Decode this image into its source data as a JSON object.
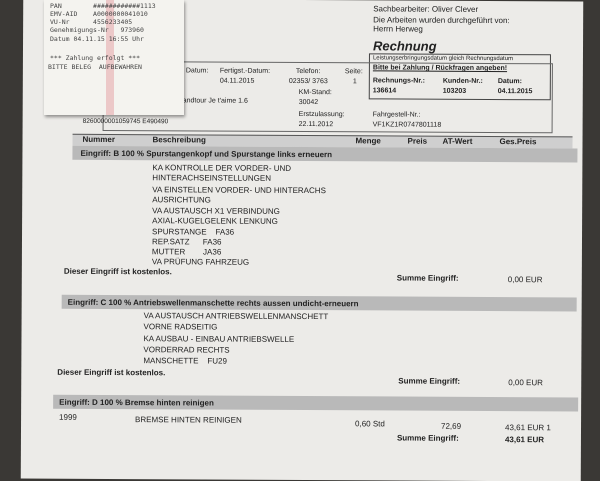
{
  "receipt": {
    "lines": [
      "PAN        ############1113",
      "EMV-AID    A0000000041010",
      "VU-Nr      4556233405",
      "Genehmigungs-Nr   973960",
      "Datum 04.11.15 16:55 Uhr"
    ],
    "note1": "*** Zahlung erfolgt ***",
    "note2": "BITTE BELEG  AUFBEWAHREN"
  },
  "header": {
    "sachbearbeiter": "Sachbearbeiter: Oliver Clever",
    "arbeiten": "Die Arbeiten wurden durchgeführt von:",
    "person": "Herrn Herweg",
    "title": "Rechnung",
    "leistung": "Leistungserbringungsdatum gleich Rechnungsdatum",
    "bitte": "Bitte bei Zahlung / Rückfragen angeben!",
    "rechnr_label": "Rechnungs-Nr.:",
    "rechnr": "136614",
    "kundennr_label": "Kunden-Nr.:",
    "kundennr": "103203",
    "datum_label": "Datum:",
    "datum": "04.11.2015"
  },
  "vehicle": {
    "datum_label": "Datum:",
    "fertig_label": "Fertigst.-Datum:",
    "fertig": "04.11.2015",
    "telefon_label": "Telefon:",
    "telefon": "02353/ 3763",
    "seite_label": "Seite:",
    "seite": "1",
    "model": "andtour Je t'aime 1.6",
    "km_label": "KM-Stand:",
    "km": "30042",
    "erst_label": "Erstzulassung:",
    "erst": "22.11.2012",
    "fahrgestell_label": "Fahrgestell-Nr.:",
    "fahrgestell": "VF1KZ1R0747801118",
    "code": "8260000001059745  E490490"
  },
  "columns": [
    "Nummer",
    "Beschreibung",
    "Menge",
    "Preis",
    "AT-Wert",
    "Ges.Preis"
  ],
  "sections": [
    {
      "title": "Eingriff: B   100 % Spurstangenkopf und Spurstange links erneuern",
      "lines": [
        "KA KONTROLLE DER VORDER- UND",
        "HINTERACHSEINSTELLUNGEN",
        "VA EINSTELLEN VORDER- UND HINTERACHS",
        "AUSRICHTUNG",
        "VA AUSTAUSCH X1 VERBINDUNG",
        "AXIAL-KUGELGELENK LENKUNG",
        "SPURSTANGE    FA36",
        "REP.SATZ      FA36",
        "MUTTER        JA36",
        "VA PRÜFUNG FAHRZEUG"
      ],
      "note": "Dieser Eingriff ist kostenlos.",
      "sum_label": "Summe Eingriff:",
      "sum": "0,00 EUR"
    },
    {
      "title": "Eingriff: C   100 % Antriebswellenmanschette rechts aussen undicht-erneuern",
      "lines": [
        "VA AUSTAUSCH ANTRIEBSWELLENMANSCHETT",
        "VORNE RADSEITIG",
        "KA AUSBAU - EINBAU ANTRIEBSWELLE",
        "VORDERRAD RECHTS",
        "MANSCHETTE    FU29"
      ],
      "note": "Dieser Eingriff ist kostenlos.",
      "sum_label": "Summe Eingriff:",
      "sum": "0,00 EUR"
    },
    {
      "title": "Eingriff: D   100 % Bremse hinten reinigen",
      "item": {
        "nummer": "1999",
        "beschreibung": "BREMSE HINTEN REINIGEN",
        "menge": "0,60 Std",
        "preis": "72,69",
        "ges": "43,61 EUR 1"
      },
      "sum_label": "Summe Eingriff:",
      "sum": "43,61 EUR"
    }
  ]
}
